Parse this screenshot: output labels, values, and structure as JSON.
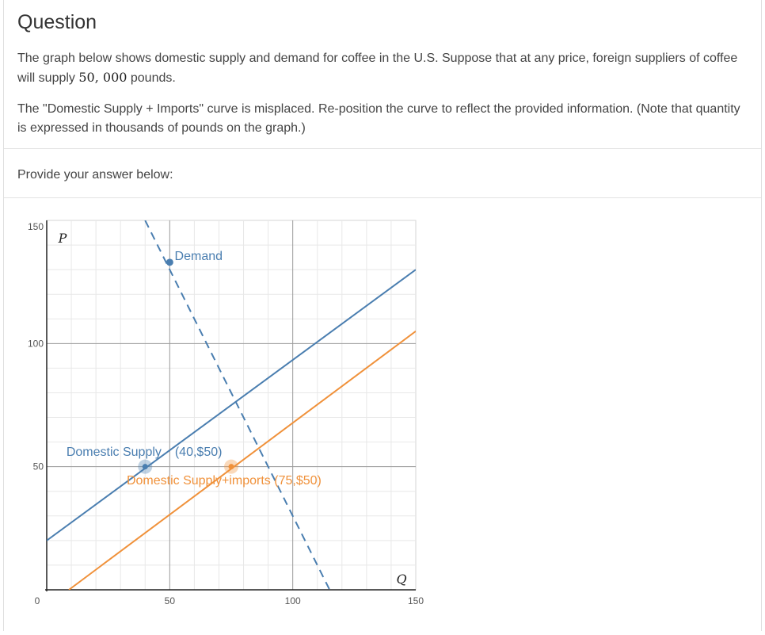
{
  "question": {
    "heading": "Question",
    "para1_before": "The graph below shows domestic supply and demand for coffee in the U.S. Suppose that at any price, foreign suppliers of coffee will supply ",
    "para1_value": "50, 000",
    "para1_after": " pounds.",
    "para2": "The \"Domestic Supply + Imports\" curve is misplaced. Re-position the curve to reflect the provided information. (Note that quantity is expressed in thousands of pounds on the graph.)"
  },
  "answer": {
    "prompt": "Provide your answer below:"
  },
  "chart_data": {
    "type": "line",
    "x_axis_variable": "Q",
    "y_axis_variable": "P",
    "xlim": [
      0,
      150
    ],
    "ylim": [
      0,
      150
    ],
    "x_ticks": [
      {
        "value": 0,
        "label": "0"
      },
      {
        "value": 50,
        "label": "50"
      },
      {
        "value": 100,
        "label": "100"
      },
      {
        "value": 150,
        "label": "150"
      }
    ],
    "y_ticks": [
      {
        "value": 50,
        "label": "50"
      },
      {
        "value": 100,
        "label": "100"
      },
      {
        "value": 150,
        "label": "150"
      }
    ],
    "grid": true,
    "series": [
      {
        "name": "Demand",
        "label": "Demand",
        "style": "dashed",
        "color": "#4a7eb0",
        "points": [
          [
            40,
            150
          ],
          [
            115,
            0
          ]
        ],
        "handle": [
          50,
          133
        ]
      },
      {
        "name": "Domestic Supply",
        "label": "Domestic Supply",
        "point_label": "(40,$50)",
        "style": "solid",
        "color": "#4a7eb0",
        "points": [
          [
            0,
            20
          ],
          [
            150,
            130
          ]
        ],
        "marker": [
          40,
          50
        ]
      },
      {
        "name": "Domestic Supply+imports",
        "label": "Domestic Supply+imports (75,$50)",
        "style": "solid",
        "color": "#f0913a",
        "points": [
          [
            9,
            0
          ],
          [
            150,
            105
          ]
        ],
        "marker": [
          75,
          50
        ]
      }
    ]
  }
}
